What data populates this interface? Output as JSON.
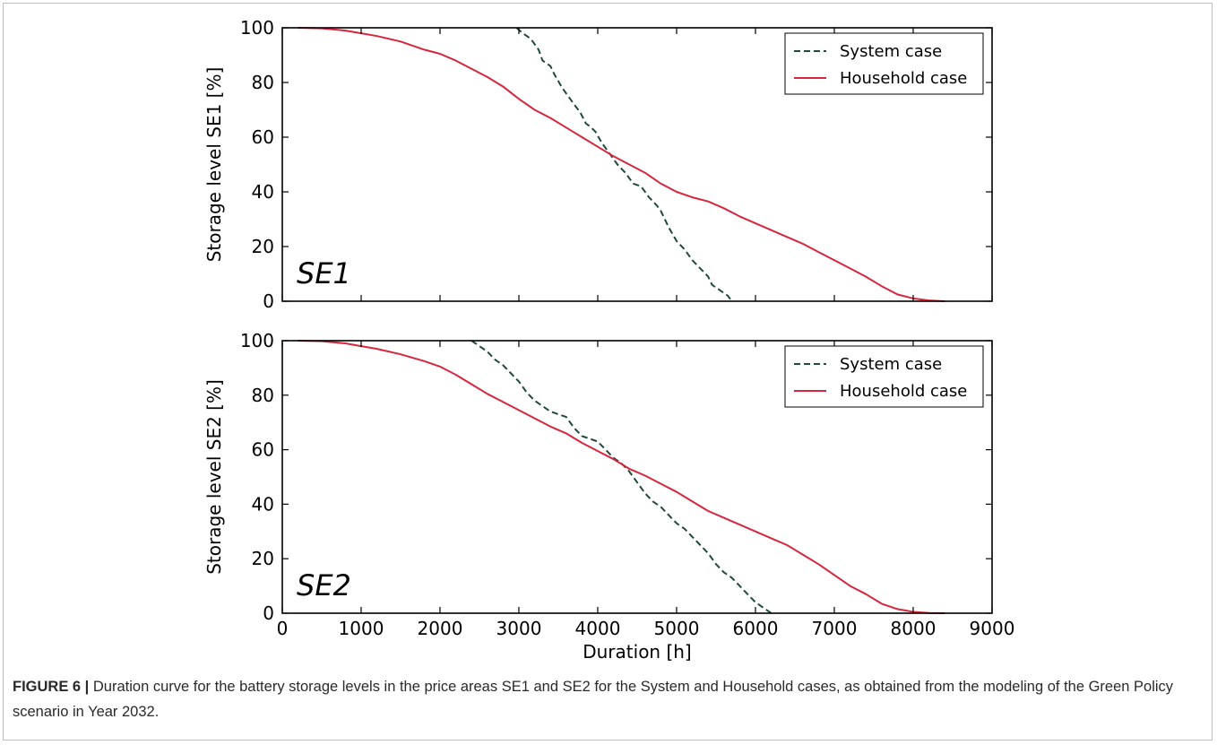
{
  "figure": {
    "caption_label": "FIGURE 6 |",
    "caption_text": " Duration curve for the battery storage levels in the price areas SE1 and SE2 for the System and Household cases, as obtained from the modeling of the Green Policy scenario in Year 2032."
  },
  "colors": {
    "system": "#1f4a3d",
    "household": "#d7263d"
  },
  "chart_data": [
    {
      "type": "line",
      "annotation": "SE1",
      "xlabel": "",
      "ylabel": "Storage level SE1 [%]",
      "xlim": [
        0,
        9000
      ],
      "ylim": [
        0,
        100
      ],
      "xticks": [
        0,
        1000,
        2000,
        3000,
        4000,
        5000,
        6000,
        7000,
        8000,
        9000
      ],
      "yticks": [
        0,
        20,
        40,
        60,
        80,
        100
      ],
      "show_xtick_labels": false,
      "legend": "top-right",
      "series": [
        {
          "name": "System case",
          "style": "dashed",
          "x": [
            2970,
            3050,
            3150,
            3250,
            3300,
            3400,
            3450,
            3550,
            3650,
            3700,
            3780,
            3850,
            3900,
            3970,
            4050,
            4150,
            4250,
            4350,
            4450,
            4550,
            4650,
            4750,
            4800,
            4900,
            5000,
            5100,
            5200,
            5300,
            5400,
            5450,
            5550,
            5650,
            5700
          ],
          "y": [
            100,
            98,
            96,
            92,
            88,
            86,
            83,
            78,
            74,
            72,
            69,
            65,
            64,
            62,
            58,
            54,
            50,
            47,
            43,
            42,
            38,
            35,
            33,
            27,
            22,
            19,
            15,
            12,
            9,
            6,
            4,
            2,
            0
          ]
        },
        {
          "name": "Household case",
          "style": "solid",
          "x": [
            200,
            500,
            800,
            1000,
            1200,
            1500,
            1800,
            2000,
            2200,
            2400,
            2600,
            2800,
            3000,
            3200,
            3400,
            3600,
            3800,
            4000,
            4200,
            4400,
            4600,
            4800,
            5000,
            5200,
            5400,
            5600,
            5800,
            6000,
            6200,
            6400,
            6600,
            6800,
            7000,
            7200,
            7400,
            7600,
            7800,
            8000,
            8200,
            8400
          ],
          "y": [
            100,
            99.8,
            99,
            98,
            97,
            95,
            92,
            90.5,
            88,
            85,
            82,
            78.5,
            74,
            70,
            67,
            63.5,
            60,
            56.5,
            53,
            50,
            47,
            43,
            40,
            38,
            36.5,
            34,
            31,
            28.5,
            26,
            23.5,
            21,
            18,
            15,
            12,
            9,
            5.5,
            2.5,
            1,
            0.3,
            0
          ]
        }
      ]
    },
    {
      "type": "line",
      "annotation": "SE2",
      "xlabel": "Duration [h]",
      "ylabel": "Storage level SE2 [%]",
      "xlim": [
        0,
        9000
      ],
      "ylim": [
        0,
        100
      ],
      "xticks": [
        0,
        1000,
        2000,
        3000,
        4000,
        5000,
        6000,
        7000,
        8000,
        9000
      ],
      "yticks": [
        0,
        20,
        40,
        60,
        80,
        100
      ],
      "show_xtick_labels": true,
      "legend": "top-right",
      "series": [
        {
          "name": "System case",
          "style": "dashed",
          "x": [
            2400,
            2500,
            2600,
            2700,
            2800,
            2900,
            3000,
            3100,
            3200,
            3300,
            3400,
            3500,
            3600,
            3700,
            3800,
            3900,
            4000,
            4100,
            4200,
            4300,
            4400,
            4500,
            4600,
            4700,
            4800,
            4900,
            5000,
            5100,
            5200,
            5300,
            5400,
            5500,
            5600,
            5700,
            5800,
            5900,
            6000,
            6100,
            6200
          ],
          "y": [
            100,
            98,
            96,
            93,
            91,
            88,
            85,
            81,
            78,
            76,
            74,
            73,
            72,
            68,
            65,
            64,
            63,
            60,
            57,
            55,
            52,
            48,
            44,
            41,
            39,
            36,
            33,
            31,
            28,
            25,
            22,
            18,
            15,
            13,
            10,
            7,
            4,
            2,
            0
          ]
        },
        {
          "name": "Household case",
          "style": "solid",
          "x": [
            200,
            500,
            800,
            1000,
            1200,
            1500,
            1800,
            2000,
            2200,
            2400,
            2600,
            2800,
            3000,
            3200,
            3400,
            3600,
            3800,
            4000,
            4200,
            4400,
            4600,
            4800,
            5000,
            5200,
            5400,
            5600,
            5800,
            6000,
            6200,
            6400,
            6600,
            6800,
            7000,
            7200,
            7400,
            7600,
            7800,
            8000,
            8200,
            8400
          ],
          "y": [
            100,
            99.8,
            99,
            98,
            97,
            95,
            92.5,
            90.5,
            87.5,
            84,
            80.5,
            77.5,
            74.5,
            71.5,
            68.5,
            66,
            62.5,
            59.5,
            56.5,
            53,
            50.5,
            47.5,
            44.5,
            41,
            37.5,
            35,
            32.5,
            30,
            27.5,
            25,
            21.5,
            18,
            14,
            10,
            7,
            3.5,
            1.5,
            0.5,
            0.1,
            0
          ]
        }
      ]
    }
  ]
}
